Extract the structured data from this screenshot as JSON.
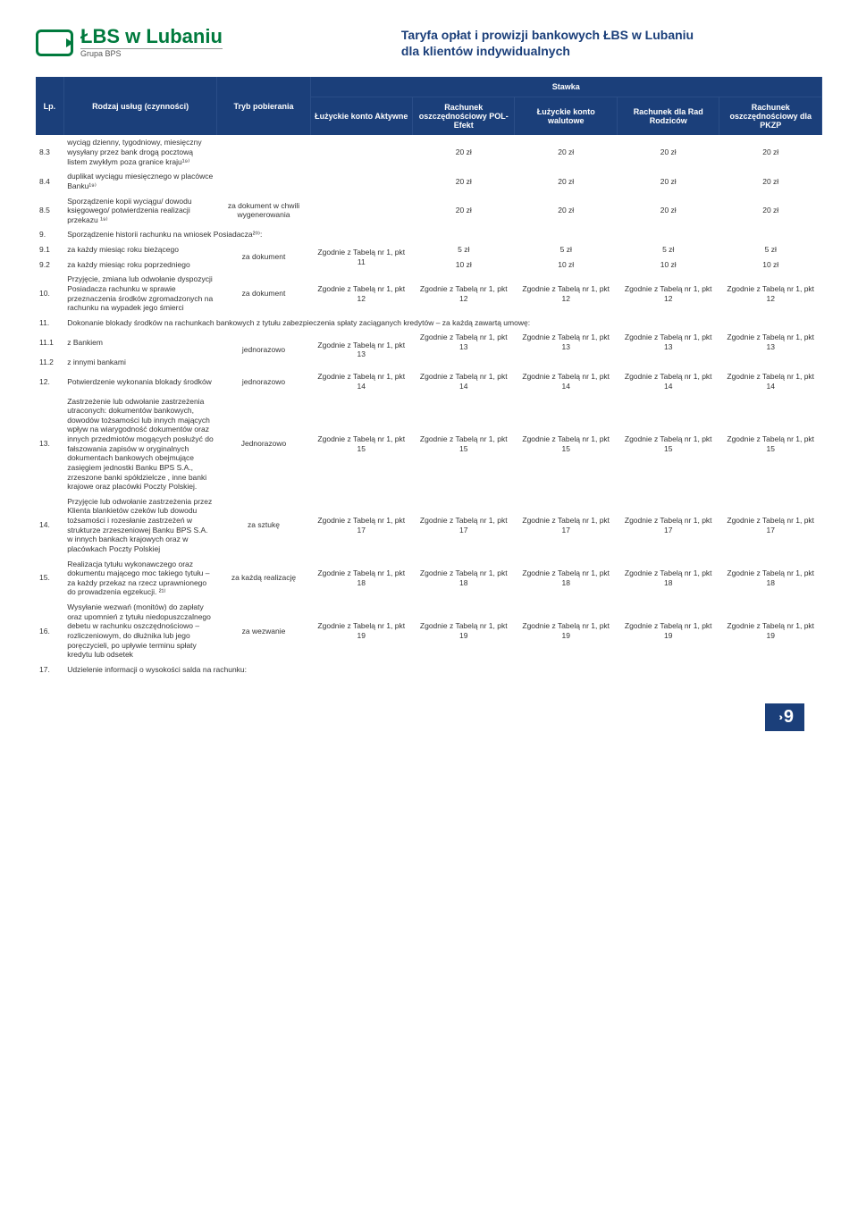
{
  "header": {
    "logo_main": "ŁBS w Lubaniu",
    "logo_sub": "Grupa BPS",
    "title_line1": "Taryfa opłat i prowizji bankowych  ŁBS w Lubaniu",
    "title_line2": "dla klientów indywidualnych"
  },
  "table": {
    "head": {
      "lp": "Lp.",
      "rodzaj": "Rodzaj usług (czynności)",
      "tryb": "Tryb pobierania",
      "stawka": "Stawka",
      "col1": "Łużyckie konto Aktywne",
      "col2": "Rachunek oszczędnościowy POL-Efekt",
      "col3": "Łużyckie konto walutowe",
      "col4": "Rachunek dla Rad Rodziców",
      "col5": "Rachunek oszczędnościowy dla PKZP"
    },
    "rows": [
      {
        "lp": "8.3",
        "desc": "wyciąg dzienny, tygodniowy, miesięczny wysyłany przez bank drogą pocztową listem zwykłym poza granice kraju¹⁹⁾",
        "tryb": "",
        "v": [
          "",
          "20 zł",
          "20 zł",
          "20 zł",
          "20 zł"
        ]
      },
      {
        "lp": "8.4",
        "desc": "duplikat wyciągu miesięcznego w placówce Banku¹⁹⁾",
        "tryb": "",
        "v": [
          "",
          "20 zł",
          "20 zł",
          "20 zł",
          "20 zł"
        ]
      },
      {
        "lp": "8.5",
        "desc": "Sporządzenie kopii wyciągu/ dowodu księgowego/ potwierdzenia realizacji przekazu ¹⁹⁾",
        "tryb": "za dokument w chwili wygenerowania",
        "v": [
          "",
          "20 zł",
          "20 zł",
          "20 zł",
          "20 zł"
        ]
      },
      {
        "lp": "9.",
        "desc": "Sporządzenie historii rachunku na wniosek Posiadacza²⁰⁾:",
        "span": true
      },
      {
        "lp": "9.1",
        "desc": "za każdy miesiąc roku bieżącego",
        "tryb": "za dokument",
        "trybspan": 2,
        "v": [
          "Zgodnie z Tabelą nr 1, pkt 11",
          "5 zł",
          "5 zł",
          "5 zł",
          "5 zł"
        ],
        "v0span": 2
      },
      {
        "lp": "9.2",
        "desc": "za każdy miesiąc roku poprzedniego",
        "tryb": "",
        "v": [
          "",
          "10 zł",
          "10 zł",
          "10 zł",
          "10 zł"
        ]
      },
      {
        "lp": "10.",
        "desc": "Przyjęcie, zmiana lub odwołanie dyspozycji Posiadacza rachunku w sprawie przeznaczenia środków zgromadzonych na rachunku na wypadek jego śmierci",
        "tryb": "za dokument",
        "v": [
          "Zgodnie z Tabelą nr 1, pkt 12",
          "Zgodnie z Tabelą nr 1, pkt 12",
          "Zgodnie z Tabelą nr 1, pkt 12",
          "Zgodnie z Tabelą nr 1, pkt 12",
          "Zgodnie z Tabelą nr 1, pkt 12"
        ]
      },
      {
        "lp": "11.",
        "desc": "Dokonanie blokady środków na rachunkach bankowych z tytułu zabezpieczenia spłaty zaciąganych kredytów – za każdą zawartą umowę:",
        "span": true
      },
      {
        "lp": "11.1",
        "desc": "z Bankiem",
        "tryb": "jednorazowo",
        "trybspan": 2,
        "v": [
          "Zgodnie z Tabelą nr 1, pkt 13",
          "Zgodnie z Tabelą nr 1, pkt 13",
          "Zgodnie z Tabelą nr 1, pkt 13",
          "Zgodnie z Tabelą nr 1, pkt 13",
          "Zgodnie z Tabelą nr 1, pkt 13"
        ],
        "v0span": 2
      },
      {
        "lp": "11.2",
        "desc": "z innymi bankami",
        "tryb": "",
        "v": [
          "",
          "",
          "",
          "",
          ""
        ]
      },
      {
        "lp": "12.",
        "desc": "Potwierdzenie wykonania blokady środków",
        "tryb": "jednorazowo",
        "v": [
          "Zgodnie z Tabelą nr 1, pkt 14",
          "Zgodnie z Tabelą nr 1, pkt 14",
          "Zgodnie z Tabelą nr 1, pkt 14",
          "Zgodnie z Tabelą nr 1, pkt 14",
          "Zgodnie z Tabelą nr 1, pkt 14"
        ]
      },
      {
        "lp": "13.",
        "desc": "Zastrzeżenie lub odwołanie zastrzeżenia utraconych: dokumentów bankowych, dowodów tożsamości lub innych mających wpływ na wiarygodność dokumentów oraz innych przedmiotów mogących posłużyć do fałszowania zapisów w oryginalnych dokumentach bankowych obejmujące zasięgiem jednostki Banku BPS S.A., zrzeszone banki spółdzielcze , inne banki krajowe oraz placówki Poczty Polskiej.",
        "tryb": "Jednorazowo",
        "v": [
          "Zgodnie z Tabelą nr 1, pkt 15",
          "Zgodnie z Tabelą nr 1, pkt 15",
          "Zgodnie z Tabelą nr 1, pkt 15",
          "Zgodnie z Tabelą nr 1, pkt 15",
          "Zgodnie z Tabelą nr 1, pkt 15"
        ],
        "justify": true
      },
      {
        "lp": "14.",
        "desc": "Przyjęcie lub odwołanie zastrzeżenia przez Klienta blankietów czeków lub dowodu tożsamości i rozesłanie zastrzeżeń w strukturze zrzeszeniowej Banku BPS S.A. w innych bankach krajowych oraz w placówkach Poczty Polskiej",
        "tryb": "za sztukę",
        "v": [
          "Zgodnie z Tabelą nr 1, pkt 17",
          "Zgodnie z Tabelą nr 1, pkt 17",
          "Zgodnie z Tabelą nr 1, pkt 17",
          "Zgodnie z Tabelą nr 1, pkt 17",
          "Zgodnie z Tabelą nr 1, pkt 17"
        ],
        "justify": true
      },
      {
        "lp": "15.",
        "desc": "Realizacja tytułu wykonawczego oraz dokumentu mającego moc takiego tytułu – za każdy przekaz na rzecz uprawnionego do prowadzenia egzekucji. ²¹⁾",
        "tryb": "za każdą realizację",
        "v": [
          "Zgodnie z Tabelą nr 1, pkt 18",
          "Zgodnie z Tabelą nr 1, pkt 18",
          "Zgodnie z Tabelą nr 1, pkt 18",
          "Zgodnie z Tabelą nr 1, pkt 18",
          "Zgodnie z Tabelą nr 1, pkt 18"
        ],
        "justify": true
      },
      {
        "lp": "16.",
        "desc": "Wysyłanie wezwań (monitów) do zapłaty oraz upomnień z tytułu niedopuszczalnego debetu w rachunku oszczędnościowo – rozliczeniowym, do dłużnika lub jego poręczycieli, po upływie terminu spłaty kredytu lub odsetek",
        "tryb": "za wezwanie",
        "v": [
          "Zgodnie z Tabelą nr 1, pkt 19",
          "Zgodnie z Tabelą nr 1, pkt 19",
          "Zgodnie z Tabelą nr 1, pkt 19",
          "Zgodnie z Tabelą nr 1, pkt 19",
          "Zgodnie z Tabelą nr 1, pkt 19"
        ],
        "justify": true
      },
      {
        "lp": "17.",
        "desc": "Udzielenie informacji o wysokości salda na rachunku:",
        "span": true
      }
    ]
  },
  "footer": {
    "chev": "››",
    "page": "9"
  }
}
